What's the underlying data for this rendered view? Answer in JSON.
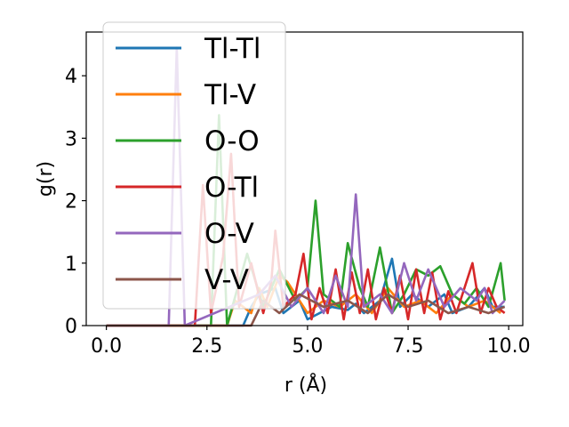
{
  "chart_data": {
    "type": "line",
    "xlabel": "r (Å)",
    "ylabel": "g(r)",
    "xlim": [
      -0.5,
      10.35
    ],
    "ylim": [
      0,
      4.7
    ],
    "xticks": [
      0.0,
      2.5,
      5.0,
      7.5,
      10.0
    ],
    "xtick_labels": [
      "0.0",
      "2.5",
      "5.0",
      "7.5",
      "10.0"
    ],
    "yticks": [
      0,
      1,
      2,
      3,
      4
    ],
    "ytick_labels": [
      "0",
      "1",
      "2",
      "3",
      "4"
    ],
    "grid": false,
    "legend_position": "top-left",
    "series": [
      {
        "name": "Tl-Tl",
        "color": "#1f77b4",
        "x": [
          0,
          3.4,
          3.6,
          3.8,
          4.2,
          4.4,
          4.8,
          5.0,
          5.6,
          6.0,
          6.2,
          6.4,
          6.8,
          7.1,
          7.3,
          7.6,
          8.0,
          8.4,
          8.6,
          9.0,
          9.4,
          9.6,
          9.9
        ],
        "y": [
          0,
          0,
          0.3,
          0.5,
          0.6,
          0.2,
          0.4,
          0.1,
          0.3,
          0.25,
          0.35,
          0.2,
          0.4,
          1.07,
          0.3,
          0.5,
          0.3,
          0.5,
          0.2,
          0.3,
          0.6,
          0.3,
          0.3
        ]
      },
      {
        "name": "Tl-V",
        "color": "#ff7f0e",
        "x": [
          0,
          3.0,
          3.2,
          3.6,
          3.8,
          4.0,
          4.3,
          4.5,
          4.7,
          5.0,
          5.4,
          5.8,
          6.2,
          6.6,
          7.0,
          7.4,
          7.8,
          8.2,
          8.6,
          9.0,
          9.4,
          9.8
        ],
        "y": [
          0,
          0,
          0.4,
          0.2,
          0.6,
          0.3,
          0.8,
          0.7,
          0.5,
          0.2,
          0.4,
          0.3,
          0.5,
          0.2,
          0.6,
          0.3,
          0.4,
          0.2,
          0.5,
          0.3,
          0.4,
          0.2
        ]
      },
      {
        "name": "O-O",
        "color": "#2ca02c",
        "x": [
          0,
          2.6,
          2.8,
          3.0,
          3.5,
          3.9,
          4.3,
          4.7,
          5.0,
          5.2,
          5.4,
          5.8,
          6.0,
          6.3,
          6.5,
          6.8,
          7.1,
          7.4,
          7.7,
          8.0,
          8.3,
          8.6,
          8.9,
          9.2,
          9.5,
          9.8,
          9.9
        ],
        "y": [
          0,
          0,
          3.37,
          0,
          1.15,
          0.3,
          0.9,
          0.4,
          0.6,
          2.0,
          0.5,
          0.3,
          1.32,
          0.6,
          0.3,
          1.25,
          0.2,
          0.5,
          0.9,
          0.8,
          0.95,
          0.5,
          0.35,
          0.6,
          0.3,
          1.0,
          0.4
        ]
      },
      {
        "name": "O-Tl",
        "color": "#d62728",
        "x": [
          0,
          2.2,
          2.4,
          2.6,
          2.9,
          3.1,
          3.3,
          3.6,
          3.9,
          4.1,
          4.2,
          4.4,
          4.7,
          4.9,
          5.1,
          5.3,
          5.5,
          5.7,
          5.9,
          6.1,
          6.3,
          6.5,
          6.7,
          6.9,
          7.1,
          7.3,
          7.5,
          7.7,
          7.9,
          8.1,
          8.3,
          8.5,
          8.7,
          8.9,
          9.1,
          9.3,
          9.5,
          9.7,
          9.9
        ],
        "y": [
          0,
          0,
          2.25,
          0.2,
          1.1,
          2.75,
          0.3,
          1.0,
          0.2,
          0.7,
          1.52,
          0.3,
          0.5,
          1.15,
          0.1,
          0.6,
          0.2,
          0.9,
          0.1,
          0.85,
          0.2,
          0.9,
          0.1,
          0.6,
          0.2,
          0.8,
          0.1,
          0.9,
          0.2,
          0.85,
          0.1,
          0.55,
          0.2,
          0.6,
          1.0,
          0.2,
          0.6,
          0.3,
          0.2
        ]
      },
      {
        "name": "O-V",
        "color": "#9467bd",
        "x": [
          0,
          1.55,
          1.75,
          1.95,
          3.8,
          4.2,
          4.6,
          5.0,
          5.4,
          5.7,
          6.0,
          6.2,
          6.4,
          6.8,
          7.1,
          7.4,
          7.7,
          8.0,
          8.4,
          8.8,
          9.2,
          9.4,
          9.6,
          9.9
        ],
        "y": [
          0,
          0,
          4.45,
          0,
          0.5,
          0.8,
          0.3,
          0.6,
          0.2,
          0.8,
          0.3,
          2.1,
          0.3,
          0.5,
          0.2,
          1.0,
          0.4,
          0.9,
          0.3,
          0.6,
          0.4,
          0.6,
          0.2,
          0.4
        ]
      },
      {
        "name": "V-V",
        "color": "#8c564b",
        "x": [
          0,
          3.6,
          3.9,
          4.3,
          4.8,
          5.4,
          6.0,
          6.5,
          7.0,
          7.5,
          8.0,
          8.5,
          9.0,
          9.5,
          9.9
        ],
        "y": [
          0,
          0,
          0.4,
          0.2,
          0.5,
          0.3,
          0.4,
          0.2,
          0.5,
          0.3,
          0.4,
          0.2,
          0.3,
          0.2,
          0.3
        ]
      }
    ]
  }
}
